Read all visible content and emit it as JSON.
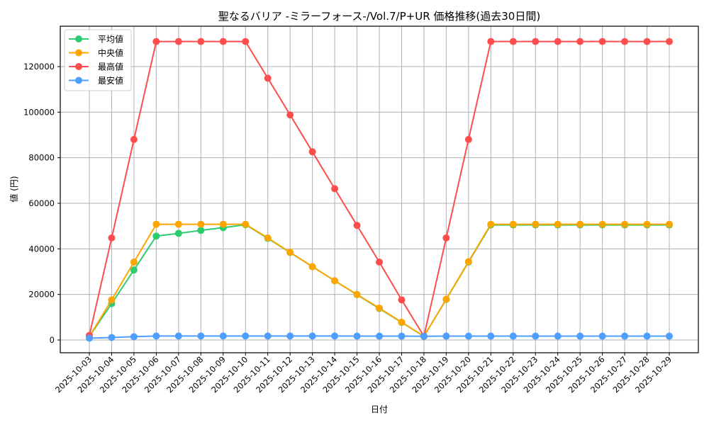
{
  "chart_data": {
    "type": "line",
    "title": "聖なるバリア -ミラーフォース-/Vol.7/P+UR 価格推移(過去30日間)",
    "xlabel": "日付",
    "ylabel": "値 (円)",
    "ylim": [
      -5500,
      137500
    ],
    "yticks": [
      0,
      20000,
      40000,
      60000,
      80000,
      100000,
      120000
    ],
    "grid": true,
    "legend_position": "upper left",
    "x": [
      "2025-10-03",
      "2025-10-04",
      "2025-10-05",
      "2025-10-06",
      "2025-10-07",
      "2025-10-08",
      "2025-10-09",
      "2025-10-10",
      "2025-10-11",
      "2025-10-12",
      "2025-10-13",
      "2025-10-14",
      "2025-10-15",
      "2025-10-16",
      "2025-10-17",
      "2025-10-18",
      "2025-10-19",
      "2025-10-20",
      "2025-10-21",
      "2025-10-22",
      "2025-10-23",
      "2025-10-24",
      "2025-10-25",
      "2025-10-26",
      "2025-10-27",
      "2025-10-28",
      "2025-10-29"
    ],
    "series": [
      {
        "name": "平均値",
        "color": "#2ecc71",
        "values": [
          1500,
          16000,
          30700,
          45600,
          46800,
          48100,
          49300,
          50600,
          44600,
          38400,
          32200,
          26000,
          19900,
          13800,
          7700,
          1600,
          17800,
          34200,
          50500,
          50500,
          50500,
          50500,
          50500,
          50500,
          50500,
          50500,
          50500
        ]
      },
      {
        "name": "中央値",
        "color": "#ffa500",
        "values": [
          1500,
          17600,
          34200,
          50800,
          50800,
          50800,
          50800,
          50800,
          44800,
          38500,
          32200,
          26000,
          20000,
          14000,
          7800,
          1650,
          17900,
          34400,
          50800,
          50800,
          50800,
          50800,
          50800,
          50800,
          50800,
          50800,
          50800
        ]
      },
      {
        "name": "最高値",
        "color": "#ff4d4d",
        "values": [
          2000,
          44800,
          88000,
          131000,
          131000,
          131000,
          131000,
          131000,
          114900,
          98800,
          82600,
          66400,
          50300,
          34200,
          17600,
          1650,
          44800,
          88000,
          131000,
          131000,
          131000,
          131000,
          131000,
          131000,
          131000,
          131000,
          131000
        ]
      },
      {
        "name": "最安値",
        "color": "#4d9eff",
        "values": [
          800,
          1100,
          1450,
          1750,
          1750,
          1750,
          1750,
          1750,
          1750,
          1750,
          1750,
          1750,
          1700,
          1700,
          1700,
          1650,
          1700,
          1700,
          1700,
          1700,
          1700,
          1700,
          1700,
          1700,
          1700,
          1700,
          1700
        ]
      }
    ]
  }
}
